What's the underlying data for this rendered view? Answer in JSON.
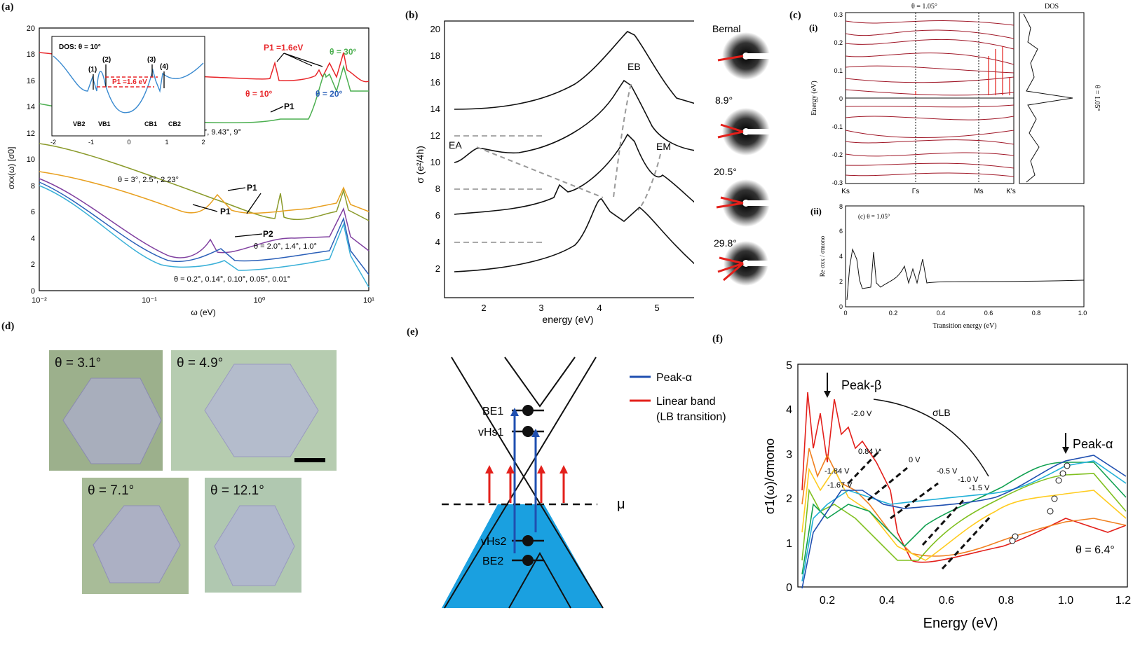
{
  "figure": {
    "panel_labels": {
      "a": "(a)",
      "b": "(b)",
      "c": "(c)",
      "d": "(d)",
      "e": "(e)",
      "f": "(f)"
    }
  },
  "panel_a": {
    "xlabel": "ω (eV)",
    "ylabel": "σxx(ω) [σ0]",
    "y_ticks": [
      "0",
      "2",
      "4",
      "6",
      "8",
      "10",
      "12",
      "14",
      "16",
      "18",
      "20"
    ],
    "x_ticks": [
      "10⁻²",
      "10⁻¹",
      "10⁰",
      "10¹"
    ],
    "labels": {
      "p1_top": "P1 =1.6eV",
      "theta30": "θ = 30°",
      "theta10": "θ = 10°",
      "theta20": "θ = 20°",
      "group2": "θ = 10°, 9.43°, 9°",
      "group3": "θ = 3°, 2.5°, 2.23°",
      "group4": "θ = 2.0°, 1.4°, 1.0°",
      "group5": "θ = 0.2°, 0.14°, 0.10°, 0.05°, 0.01°",
      "p1": "P1",
      "p2": "P2"
    },
    "inset": {
      "title": "DOS: θ = 10°",
      "peak_label": "P1 =1.6 eV",
      "markers": [
        "(1)",
        "(2)",
        "(3)",
        "(4)"
      ],
      "bands": [
        "VB2",
        "VB1",
        "CB1",
        "CB2"
      ],
      "x_ticks": [
        "-2",
        "-1",
        "0",
        "1",
        "2"
      ]
    },
    "colors": {
      "red": "#e8262a",
      "green": "#4caf50",
      "blue": "#2a5fb8",
      "olive": "#8a9a2a",
      "orange": "#e8a020",
      "purple": "#8040a0",
      "cyan": "#3ab0d8"
    }
  },
  "panel_b": {
    "xlabel": "energy (eV)",
    "ylabel": "σ (e²/4h)",
    "y_ticks": [
      "2",
      "4",
      "6",
      "8",
      "10",
      "12",
      "14",
      "16",
      "18",
      "20"
    ],
    "x_ticks": [
      "2",
      "3",
      "4",
      "5"
    ],
    "labels": {
      "EB": "EB",
      "EA": "EA",
      "EM": "EM"
    },
    "diffraction": [
      "Bernal",
      "8.9°",
      "20.5°",
      "29.8°"
    ]
  },
  "panel_c": {
    "sub_i": "(i)",
    "sub_ii": "(ii)",
    "title_i": "θ = 1.05°",
    "dos_title": "DOS",
    "ylabel_i": "Energy (eV)",
    "y_ticks_i": [
      "0.3",
      "0.2",
      "0.1",
      "0",
      "-0.1",
      "-0.2",
      "-0.3"
    ],
    "x_ticks_i": [
      "Ks",
      "Γs",
      "Ms",
      "K's"
    ],
    "side_label": "θ = 1.05°",
    "title_ii": "(c) θ = 1.05°",
    "xlabel_ii": "Transition energy (eV)",
    "ylabel_ii": "Re σxx / σmono",
    "y_ticks_ii": [
      "0",
      "2",
      "4",
      "6",
      "8"
    ],
    "x_ticks_ii": [
      "0",
      "0.2",
      "0.4",
      "0.6",
      "0.8",
      "1.0"
    ]
  },
  "panel_d": {
    "angles": [
      "θ = 3.1°",
      "θ = 4.9°",
      "θ = 7.1°",
      "θ = 12.1°"
    ]
  },
  "panel_e": {
    "legend": [
      {
        "label": "Peak-α",
        "color": "#1f4fb0"
      },
      {
        "label": "Linear band",
        "color": "#e3201b"
      },
      {
        "label": "(LB transition)",
        "color": "#e3201b"
      }
    ],
    "levels": [
      "BE1",
      "vHs1",
      "vHs2",
      "BE2"
    ],
    "mu": "μ"
  },
  "panel_f": {
    "xlabel": "Energy (eV)",
    "ylabel": "σ1(ω)/σmono",
    "y_ticks": [
      "0",
      "1",
      "2",
      "3",
      "4",
      "5"
    ],
    "x_ticks": [
      "0.2",
      "0.4",
      "0.6",
      "0.8",
      "1.0",
      "1.2"
    ],
    "peak_beta": "Peak-β",
    "peak_alpha": "Peak-α",
    "sigma_lb": "σLB",
    "theta": "θ = 6.4°",
    "voltages": [
      "-2.0 V",
      "0.84 V",
      "0 V",
      "-0.5 V",
      "-1.0 V",
      "-1.5 V",
      "-1.84 V",
      "-1.67 V"
    ]
  }
}
